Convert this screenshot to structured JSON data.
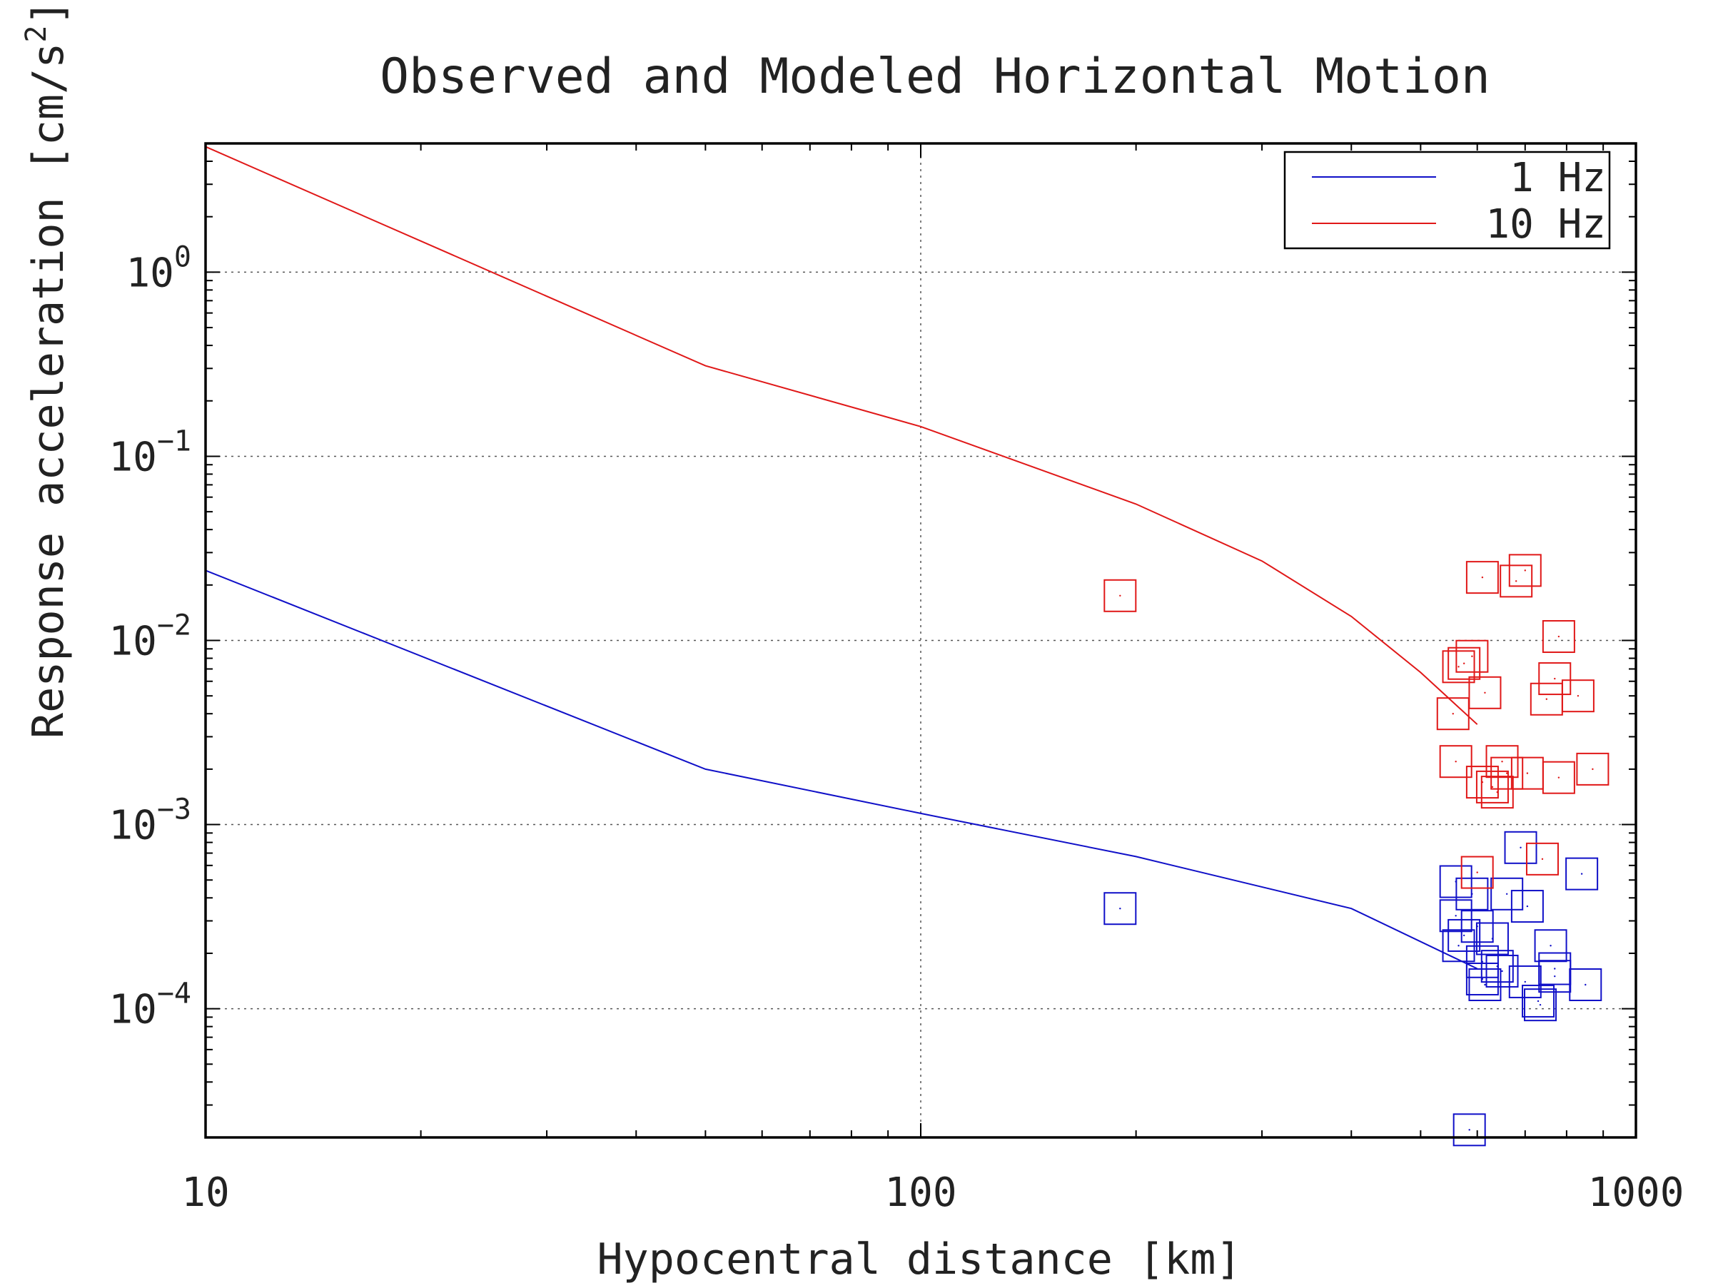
{
  "chart_data": {
    "type": "scatter",
    "title": "Observed and Modeled Horizontal Motion",
    "xlabel": "Hypocentral distance [km]",
    "ylabel_main": "Response acceleration [cm/s",
    "ylabel_sup": "2",
    "ylabel_close": "]",
    "x_scale": "log",
    "y_scale": "log",
    "xlim": [
      10,
      1000
    ],
    "ylim": [
      2e-05,
      5
    ],
    "x_ticks": [
      {
        "value": 10,
        "label": "10"
      },
      {
        "value": 100,
        "label": "100"
      },
      {
        "value": 1000,
        "label": "1000"
      }
    ],
    "y_ticks": [
      {
        "value": 1,
        "base": "10",
        "exp": "0"
      },
      {
        "value": 0.1,
        "base": "10",
        "exp": "−1"
      },
      {
        "value": 0.01,
        "base": "10",
        "exp": "−2"
      },
      {
        "value": 0.001,
        "base": "10",
        "exp": "−3"
      },
      {
        "value": 0.0001,
        "base": "10",
        "exp": "−4"
      }
    ],
    "grid": true,
    "legend_position": "top-right",
    "series": [
      {
        "name": "1 Hz",
        "color": "#1010c8",
        "model_line": [
          [
            10,
            0.024
          ],
          [
            50,
            0.002
          ],
          [
            100,
            0.00115
          ],
          [
            200,
            0.00067
          ],
          [
            400,
            0.00035
          ],
          [
            600,
            0.000165
          ]
        ],
        "observed": [
          [
            190,
            0.00035
          ],
          [
            560,
            0.00049
          ],
          [
            560,
            0.00032
          ],
          [
            565,
            0.00022
          ],
          [
            575,
            0.00025
          ],
          [
            590,
            0.00042
          ],
          [
            600,
            0.00028
          ],
          [
            610,
            0.00018
          ],
          [
            610,
            0.000145
          ],
          [
            615,
            0.000135
          ],
          [
            630,
            0.00024
          ],
          [
            640,
            0.00017
          ],
          [
            650,
            0.00016
          ],
          [
            660,
            0.00042
          ],
          [
            690,
            0.00075
          ],
          [
            700,
            0.00014
          ],
          [
            705,
            0.00036
          ],
          [
            730,
            0.00011
          ],
          [
            735,
            0.000105
          ],
          [
            760,
            0.00022
          ],
          [
            770,
            0.00015
          ],
          [
            770,
            0.000165
          ],
          [
            840,
            0.00054
          ],
          [
            850,
            0.000135
          ],
          [
            585,
            2.2e-05
          ]
        ]
      },
      {
        "name": "10 Hz",
        "color": "#e01818",
        "model_line": [
          [
            10,
            4.8
          ],
          [
            50,
            0.31
          ],
          [
            100,
            0.145
          ],
          [
            200,
            0.055
          ],
          [
            300,
            0.027
          ],
          [
            400,
            0.0135
          ],
          [
            500,
            0.0067
          ],
          [
            600,
            0.0035
          ]
        ],
        "observed": [
          [
            190,
            0.0175
          ],
          [
            555,
            0.004
          ],
          [
            560,
            0.0022
          ],
          [
            565,
            0.0072
          ],
          [
            575,
            0.0075
          ],
          [
            590,
            0.0082
          ],
          [
            600,
            0.00055
          ],
          [
            610,
            0.022
          ],
          [
            610,
            0.0017
          ],
          [
            615,
            0.0052
          ],
          [
            630,
            0.0016
          ],
          [
            640,
            0.0015
          ],
          [
            650,
            0.0022
          ],
          [
            660,
            0.0019
          ],
          [
            680,
            0.021
          ],
          [
            700,
            0.024
          ],
          [
            705,
            0.0019
          ],
          [
            740,
            0.00065
          ],
          [
            750,
            0.0048
          ],
          [
            770,
            0.0062
          ],
          [
            780,
            0.0105
          ],
          [
            780,
            0.0018
          ],
          [
            830,
            0.005
          ],
          [
            870,
            0.002
          ]
        ]
      }
    ]
  }
}
